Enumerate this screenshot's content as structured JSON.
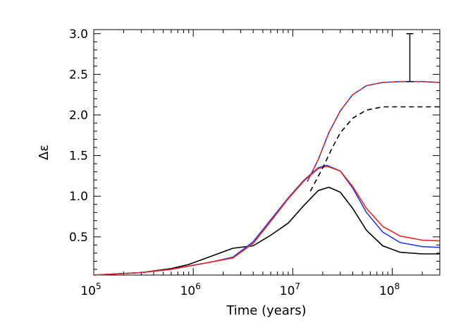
{
  "chart_data": {
    "type": "line",
    "title": "",
    "xlabel": "Time (years)",
    "ylabel": "Δε",
    "x_scale": "log",
    "xlim": [
      100000,
      300000000
    ],
    "ylim": [
      0.03,
      3.05
    ],
    "x_ticks": [
      {
        "value": 100000,
        "base": "10",
        "exp": "5"
      },
      {
        "value": 1000000,
        "base": "10",
        "exp": "6"
      },
      {
        "value": 10000000,
        "base": "10",
        "exp": "7"
      },
      {
        "value": 100000000,
        "base": "10",
        "exp": "8"
      }
    ],
    "y_ticks": [
      {
        "value": 0.5,
        "label": "0.5"
      },
      {
        "value": 1.0,
        "label": "1.0"
      },
      {
        "value": 1.5,
        "label": "1.5"
      },
      {
        "value": 2.0,
        "label": "2.0"
      },
      {
        "value": 2.5,
        "label": "2.5"
      },
      {
        "value": 3.0,
        "label": "3.0"
      }
    ],
    "grid": false,
    "legend": "none",
    "series": [
      {
        "color": "#000000",
        "style": "solid",
        "x": [
          100000,
          300000,
          600000,
          900000,
          1500000,
          2500000,
          4000000,
          6000000,
          9000000,
          13000000,
          18000000,
          23000000,
          30000000,
          40000000,
          55000000,
          80000000,
          120000000,
          200000000,
          300000000
        ],
        "y": [
          0.03,
          0.06,
          0.11,
          0.16,
          0.26,
          0.36,
          0.39,
          0.52,
          0.67,
          0.89,
          1.07,
          1.11,
          1.05,
          0.85,
          0.58,
          0.39,
          0.31,
          0.29,
          0.29
        ]
      },
      {
        "color": "#1f3fe0",
        "style": "solid",
        "x": [
          100000,
          300000,
          600000,
          900000,
          1500000,
          2500000,
          4000000,
          6000000,
          9000000,
          13000000,
          18000000,
          22000000,
          30000000,
          40000000,
          55000000,
          80000000,
          120000000,
          200000000,
          300000000
        ],
        "y": [
          0.03,
          0.06,
          0.1,
          0.14,
          0.19,
          0.25,
          0.44,
          0.71,
          0.98,
          1.2,
          1.35,
          1.38,
          1.31,
          1.1,
          0.8,
          0.56,
          0.43,
          0.38,
          0.37
        ]
      },
      {
        "color": "#e8231f",
        "style": "solid",
        "x": [
          100000,
          300000,
          600000,
          900000,
          1500000,
          2500000,
          4000000,
          6000000,
          9000000,
          13000000,
          18000000,
          22000000,
          30000000,
          40000000,
          55000000,
          80000000,
          120000000,
          200000000,
          300000000
        ],
        "y": [
          0.03,
          0.06,
          0.1,
          0.14,
          0.19,
          0.24,
          0.42,
          0.69,
          0.97,
          1.19,
          1.34,
          1.37,
          1.31,
          1.12,
          0.85,
          0.63,
          0.51,
          0.46,
          0.45
        ]
      },
      {
        "color": "#000000",
        "style": "dashed",
        "x": [
          15000000,
          20000000,
          25000000,
          30000000,
          40000000,
          55000000,
          80000000,
          120000000,
          200000000,
          300000000
        ],
        "y": [
          1.06,
          1.35,
          1.6,
          1.78,
          1.96,
          2.06,
          2.1,
          2.1,
          2.1,
          2.1
        ]
      },
      {
        "color": "#1f3fe0",
        "style": "dashed",
        "x": [
          14000000,
          18000000,
          23000000,
          30000000,
          40000000,
          55000000,
          80000000,
          120000000,
          200000000,
          300000000
        ],
        "y": [
          1.18,
          1.45,
          1.78,
          2.05,
          2.25,
          2.36,
          2.4,
          2.41,
          2.41,
          2.4
        ]
      },
      {
        "color": "#e8231f",
        "style": "dashed",
        "x": [
          14000000,
          18000000,
          23000000,
          30000000,
          40000000,
          55000000,
          80000000,
          120000000,
          200000000,
          300000000
        ],
        "y": [
          1.18,
          1.45,
          1.78,
          2.05,
          2.25,
          2.36,
          2.4,
          2.41,
          2.41,
          2.4
        ]
      }
    ],
    "error_bar": {
      "x": 150000000,
      "y_low": 2.41,
      "y_high": 3.0
    }
  }
}
